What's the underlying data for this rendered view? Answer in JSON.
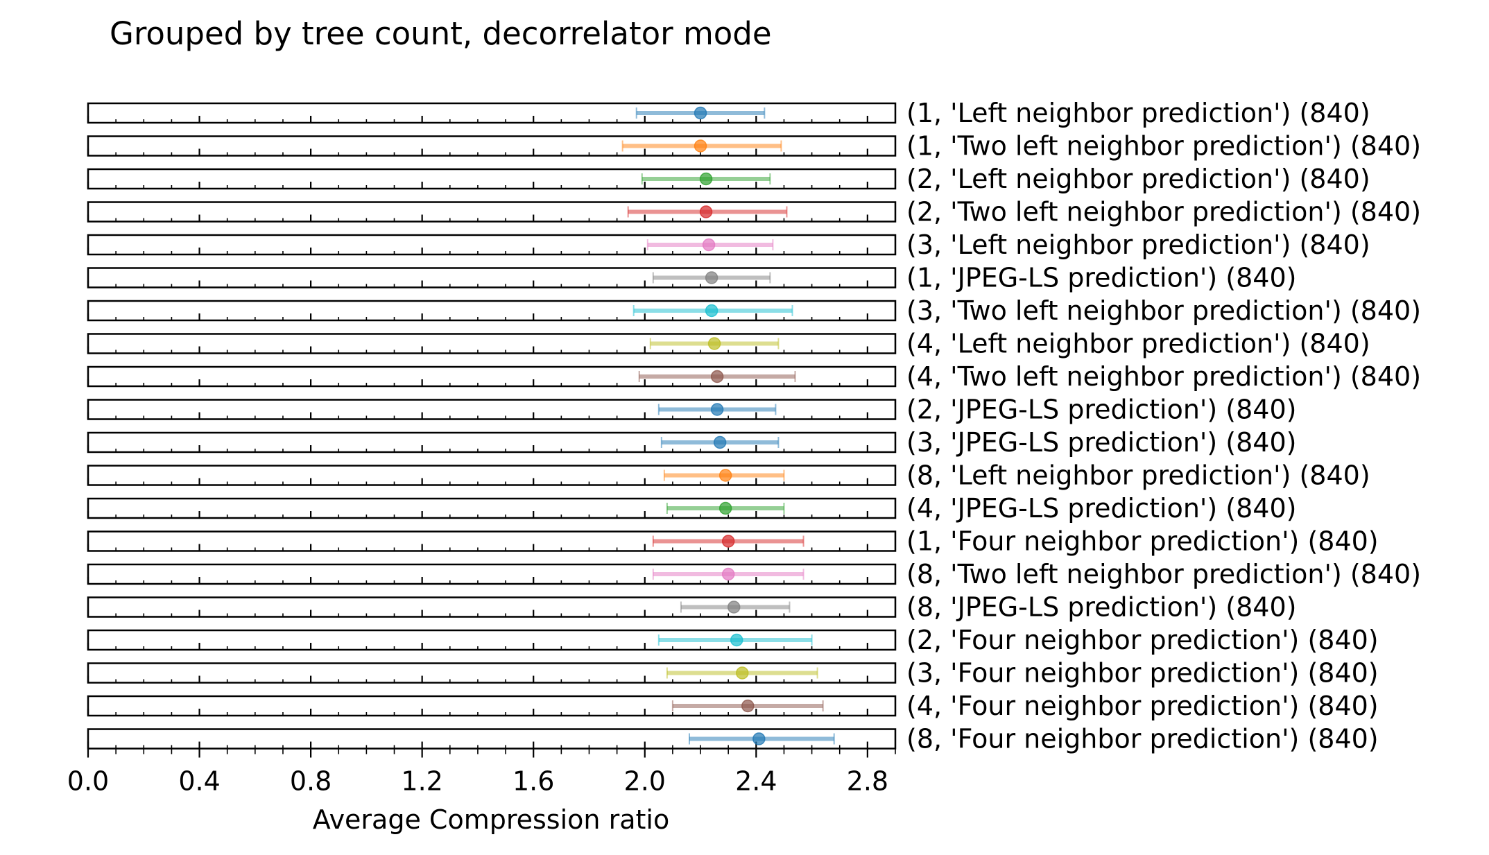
{
  "chart_data": {
    "type": "errorbar",
    "title": "Grouped by tree count, decorrelator mode",
    "xlabel": "Average Compression ratio",
    "ylabel": "",
    "xlim": [
      0.0,
      2.9
    ],
    "x_ticks": [
      0.0,
      0.4,
      0.8,
      1.2,
      1.6,
      2.0,
      2.4,
      2.8
    ],
    "x_tick_labels": [
      "0.0",
      "0.4",
      "0.8",
      "1.2",
      "1.6",
      "2.0",
      "2.4",
      "2.8"
    ],
    "grid": false,
    "series": [
      {
        "label": "(1, 'Left neighbor prediction') (840)",
        "mean": 2.2,
        "low": 1.97,
        "high": 2.43,
        "color": "#1f77b4"
      },
      {
        "label": "(1, 'Two left neighbor prediction') (840)",
        "mean": 2.2,
        "low": 1.92,
        "high": 2.49,
        "color": "#ff7f0e"
      },
      {
        "label": "(2, 'Left neighbor prediction') (840)",
        "mean": 2.22,
        "low": 1.99,
        "high": 2.45,
        "color": "#2ca02c"
      },
      {
        "label": "(2, 'Two left neighbor prediction') (840)",
        "mean": 2.22,
        "low": 1.94,
        "high": 2.51,
        "color": "#d62728"
      },
      {
        "label": "(3, 'Left neighbor prediction') (840)",
        "mean": 2.23,
        "low": 2.01,
        "high": 2.46,
        "color": "#e377c2"
      },
      {
        "label": "(1, 'JPEG-LS prediction') (840)",
        "mean": 2.24,
        "low": 2.03,
        "high": 2.45,
        "color": "#7f7f7f"
      },
      {
        "label": "(3, 'Two left neighbor prediction') (840)",
        "mean": 2.24,
        "low": 1.96,
        "high": 2.53,
        "color": "#17becf"
      },
      {
        "label": "(4, 'Left neighbor prediction') (840)",
        "mean": 2.25,
        "low": 2.02,
        "high": 2.48,
        "color": "#bcbd22"
      },
      {
        "label": "(4, 'Two left neighbor prediction') (840)",
        "mean": 2.26,
        "low": 1.98,
        "high": 2.54,
        "color": "#8c564b"
      },
      {
        "label": "(2, 'JPEG-LS prediction') (840)",
        "mean": 2.26,
        "low": 2.05,
        "high": 2.47,
        "color": "#1f77b4"
      },
      {
        "label": "(3, 'JPEG-LS prediction') (840)",
        "mean": 2.27,
        "low": 2.06,
        "high": 2.48,
        "color": "#1f77b4"
      },
      {
        "label": "(8, 'Left neighbor prediction') (840)",
        "mean": 2.29,
        "low": 2.07,
        "high": 2.5,
        "color": "#ff7f0e"
      },
      {
        "label": "(4, 'JPEG-LS prediction') (840)",
        "mean": 2.29,
        "low": 2.08,
        "high": 2.5,
        "color": "#2ca02c"
      },
      {
        "label": "(1, 'Four neighbor prediction') (840)",
        "mean": 2.3,
        "low": 2.03,
        "high": 2.57,
        "color": "#d62728"
      },
      {
        "label": "(8, 'Two left neighbor prediction') (840)",
        "mean": 2.3,
        "low": 2.03,
        "high": 2.57,
        "color": "#e377c2"
      },
      {
        "label": "(8, 'JPEG-LS prediction') (840)",
        "mean": 2.32,
        "low": 2.13,
        "high": 2.52,
        "color": "#7f7f7f"
      },
      {
        "label": "(2, 'Four neighbor prediction') (840)",
        "mean": 2.33,
        "low": 2.05,
        "high": 2.6,
        "color": "#17becf"
      },
      {
        "label": "(3, 'Four neighbor prediction') (840)",
        "mean": 2.35,
        "low": 2.08,
        "high": 2.62,
        "color": "#bcbd22"
      },
      {
        "label": "(4, 'Four neighbor prediction') (840)",
        "mean": 2.37,
        "low": 2.1,
        "high": 2.64,
        "color": "#8c564b"
      },
      {
        "label": "(8, 'Four neighbor prediction') (840)",
        "mean": 2.41,
        "low": 2.16,
        "high": 2.68,
        "color": "#1f77b4"
      }
    ]
  }
}
